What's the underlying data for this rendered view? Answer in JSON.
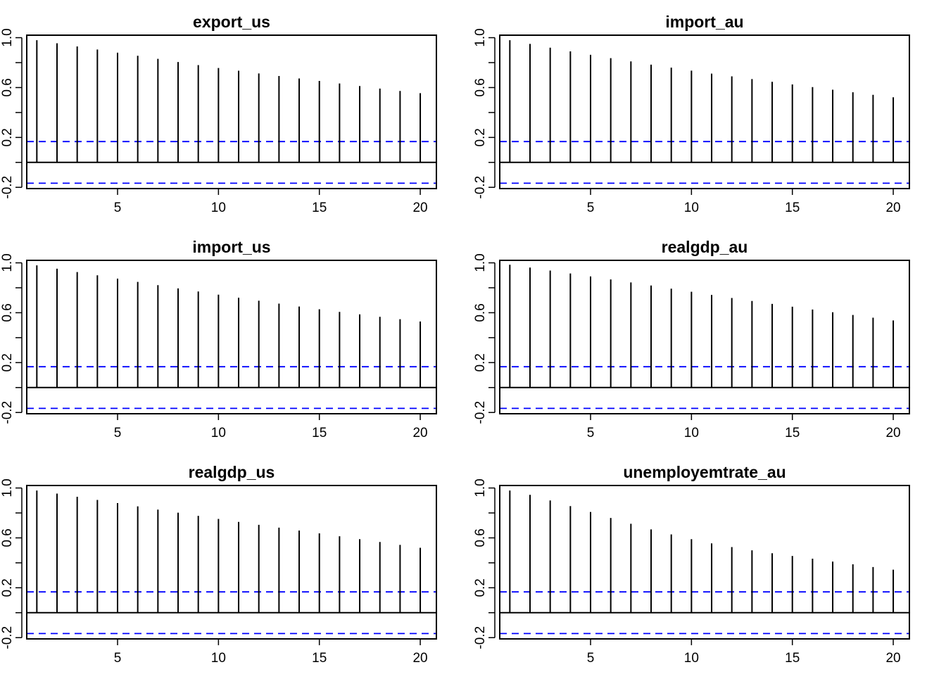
{
  "figure": {
    "type": "acf-grid",
    "rows": 3,
    "cols": 2,
    "colors": {
      "bar": "#000000",
      "confidence_band": "#0000ff",
      "frame": "#000000",
      "background": "#ffffff"
    }
  },
  "chart_data": [
    {
      "type": "bar",
      "title": "export_us",
      "x": [
        1,
        2,
        3,
        4,
        5,
        6,
        7,
        8,
        9,
        10,
        11,
        12,
        13,
        14,
        15,
        16,
        17,
        18,
        19,
        20
      ],
      "values": [
        0.98,
        0.955,
        0.93,
        0.905,
        0.88,
        0.855,
        0.83,
        0.805,
        0.78,
        0.757,
        0.735,
        0.713,
        0.693,
        0.673,
        0.653,
        0.633,
        0.612,
        0.592,
        0.573,
        0.555
      ],
      "confidence_band": 0.167,
      "xlim": [
        0.5,
        20.8
      ],
      "ylim": [
        -0.21,
        1.02
      ],
      "xticks": [
        "5",
        "10",
        "15",
        "20"
      ],
      "yticks": [
        "-0.2",
        "0.2",
        "0.6",
        "1.0"
      ],
      "xlabel": "",
      "ylabel": ""
    },
    {
      "type": "bar",
      "title": "import_au",
      "x": [
        1,
        2,
        3,
        4,
        5,
        6,
        7,
        8,
        9,
        10,
        11,
        12,
        13,
        14,
        15,
        16,
        17,
        18,
        19,
        20
      ],
      "values": [
        0.98,
        0.95,
        0.92,
        0.89,
        0.863,
        0.836,
        0.81,
        0.784,
        0.76,
        0.736,
        0.712,
        0.69,
        0.668,
        0.646,
        0.625,
        0.604,
        0.583,
        0.562,
        0.542,
        0.522
      ],
      "confidence_band": 0.167,
      "xlim": [
        0.5,
        20.8
      ],
      "ylim": [
        -0.21,
        1.02
      ],
      "xticks": [
        "5",
        "10",
        "15",
        "20"
      ],
      "yticks": [
        "-0.2",
        "0.2",
        "0.6",
        "1.0"
      ],
      "xlabel": "",
      "ylabel": ""
    },
    {
      "type": "bar",
      "title": "import_us",
      "x": [
        1,
        2,
        3,
        4,
        5,
        6,
        7,
        8,
        9,
        10,
        11,
        12,
        13,
        14,
        15,
        16,
        17,
        18,
        19,
        20
      ],
      "values": [
        0.98,
        0.953,
        0.926,
        0.9,
        0.873,
        0.847,
        0.821,
        0.795,
        0.77,
        0.745,
        0.72,
        0.696,
        0.673,
        0.65,
        0.628,
        0.607,
        0.587,
        0.567,
        0.548,
        0.53
      ],
      "confidence_band": 0.167,
      "xlim": [
        0.5,
        20.8
      ],
      "ylim": [
        -0.21,
        1.02
      ],
      "xticks": [
        "5",
        "10",
        "15",
        "20"
      ],
      "yticks": [
        "-0.2",
        "0.2",
        "0.6",
        "1.0"
      ],
      "xlabel": "",
      "ylabel": ""
    },
    {
      "type": "bar",
      "title": "realgdp_au",
      "x": [
        1,
        2,
        3,
        4,
        5,
        6,
        7,
        8,
        9,
        10,
        11,
        12,
        13,
        14,
        15,
        16,
        17,
        18,
        19,
        20
      ],
      "values": [
        0.985,
        0.962,
        0.938,
        0.915,
        0.891,
        0.867,
        0.843,
        0.818,
        0.793,
        0.768,
        0.743,
        0.718,
        0.694,
        0.671,
        0.648,
        0.626,
        0.604,
        0.582,
        0.56,
        0.538
      ],
      "confidence_band": 0.167,
      "xlim": [
        0.5,
        20.8
      ],
      "ylim": [
        -0.21,
        1.02
      ],
      "xticks": [
        "5",
        "10",
        "15",
        "20"
      ],
      "yticks": [
        "-0.2",
        "0.2",
        "0.6",
        "1.0"
      ],
      "xlabel": "",
      "ylabel": ""
    },
    {
      "type": "bar",
      "title": "realgdp_us",
      "x": [
        1,
        2,
        3,
        4,
        5,
        6,
        7,
        8,
        9,
        10,
        11,
        12,
        13,
        14,
        15,
        16,
        17,
        18,
        19,
        20
      ],
      "values": [
        0.98,
        0.955,
        0.93,
        0.904,
        0.879,
        0.853,
        0.827,
        0.802,
        0.777,
        0.752,
        0.728,
        0.705,
        0.682,
        0.659,
        0.636,
        0.613,
        0.59,
        0.567,
        0.544,
        0.521
      ],
      "confidence_band": 0.167,
      "xlim": [
        0.5,
        20.8
      ],
      "ylim": [
        -0.21,
        1.02
      ],
      "xticks": [
        "5",
        "10",
        "15",
        "20"
      ],
      "yticks": [
        "-0.2",
        "0.2",
        "0.6",
        "1.0"
      ],
      "xlabel": "",
      "ylabel": ""
    },
    {
      "type": "bar",
      "title": "unemployemtrate_au",
      "x": [
        1,
        2,
        3,
        4,
        5,
        6,
        7,
        8,
        9,
        10,
        11,
        12,
        13,
        14,
        15,
        16,
        17,
        18,
        19,
        20
      ],
      "values": [
        0.98,
        0.945,
        0.9,
        0.855,
        0.808,
        0.76,
        0.713,
        0.668,
        0.628,
        0.59,
        0.556,
        0.526,
        0.5,
        0.477,
        0.455,
        0.433,
        0.41,
        0.388,
        0.366,
        0.345
      ],
      "confidence_band": 0.167,
      "xlim": [
        0.5,
        20.8
      ],
      "ylim": [
        -0.21,
        1.02
      ],
      "xticks": [
        "5",
        "10",
        "15",
        "20"
      ],
      "yticks": [
        "-0.2",
        "0.2",
        "0.6",
        "1.0"
      ],
      "xlabel": "",
      "ylabel": ""
    }
  ]
}
